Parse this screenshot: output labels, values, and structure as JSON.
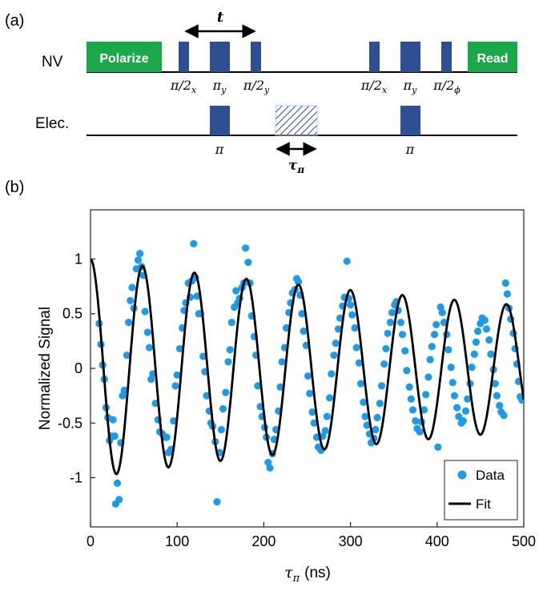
{
  "panel_a": {
    "label": "(a)",
    "nv_row": {
      "label": "NV",
      "polarize_label": "Polarize",
      "read_label": "Read",
      "pulse_labels": [
        "π/2",
        "π",
        "π/2",
        "π/2",
        "π",
        "π/2"
      ],
      "pulse_subscripts": [
        "x",
        "y",
        "y",
        "x",
        "y",
        "ϕ"
      ],
      "t_label": "t"
    },
    "elec_row": {
      "label": "Elec.",
      "pulse_labels": [
        "π",
        "π"
      ],
      "tau_label": "τ",
      "tau_subscript": "π"
    },
    "colors": {
      "green": "#1aa84a",
      "blue": "#2f4f94",
      "hatch": "#2f4f94"
    }
  },
  "panel_b": {
    "label": "(b)"
  },
  "chart_data": {
    "type": "scatter",
    "title": "",
    "xlabel": "τ",
    "xlabel_subscript": "π",
    "xlabel_unit": "(ns)",
    "ylabel": "Normalized Signal",
    "xlim": [
      0,
      500
    ],
    "ylim": [
      -1.45,
      1.45
    ],
    "xticks": [
      0,
      100,
      200,
      300,
      400,
      500
    ],
    "yticks": [
      -1,
      -0.5,
      0,
      0.5,
      1
    ],
    "ytick_labels": [
      "-1",
      "-0.5",
      "0",
      "0.5",
      "1"
    ],
    "legend": {
      "placement": "bottom-right",
      "entries": [
        "Data",
        "Fit"
      ]
    },
    "fit": {
      "name": "Fit",
      "color": "#000000",
      "model": "A*exp(-x/T)*cos(2*pi*x/P)",
      "amplitude": 1.0,
      "decay_ns": 900,
      "period_ns": 60,
      "x_start": 0,
      "x_end": 500,
      "x_step": 1
    },
    "series": [
      {
        "name": "Data",
        "color": "#1e9be6",
        "points": [
          [
            10,
            0.41
          ],
          [
            12,
            0.22
          ],
          [
            14,
            0.03
          ],
          [
            16,
            -0.1
          ],
          [
            18,
            -0.36
          ],
          [
            20,
            -0.45
          ],
          [
            22,
            -0.66
          ],
          [
            24,
            -0.62
          ],
          [
            26,
            -0.47
          ],
          [
            28,
            -0.62
          ],
          [
            29,
            -1.24
          ],
          [
            31,
            -1.05
          ],
          [
            33,
            -1.2
          ],
          [
            35,
            -0.68
          ],
          [
            37,
            -0.25
          ],
          [
            39,
            -0.2
          ],
          [
            42,
            0.12
          ],
          [
            44,
            0.42
          ],
          [
            46,
            0.62
          ],
          [
            48,
            0.74
          ],
          [
            50,
            0.55
          ],
          [
            53,
            0.91
          ],
          [
            55,
            0.99
          ],
          [
            57,
            1.05
          ],
          [
            59,
            0.93
          ],
          [
            61,
            0.85
          ],
          [
            63,
            0.52
          ],
          [
            66,
            0.33
          ],
          [
            68,
            0.19
          ],
          [
            70,
            -0.1
          ],
          [
            72,
            -0.05
          ],
          [
            75,
            -0.32
          ],
          [
            78,
            -0.47
          ],
          [
            80,
            -0.58
          ],
          [
            83,
            -0.6
          ],
          [
            85,
            -0.63
          ],
          [
            88,
            -0.63
          ],
          [
            90,
            -0.77
          ],
          [
            93,
            -0.74
          ],
          [
            96,
            -0.48
          ],
          [
            98,
            -0.16
          ],
          [
            100,
            -0.06
          ],
          [
            103,
            0.18
          ],
          [
            106,
            0.37
          ],
          [
            108,
            0.53
          ],
          [
            110,
            0.6
          ],
          [
            113,
            0.78
          ],
          [
            115,
            0.65
          ],
          [
            117,
            0.8
          ],
          [
            119,
            1.14
          ],
          [
            121,
            0.83
          ],
          [
            123,
            0.66
          ],
          [
            125,
            0.5
          ],
          [
            127,
            0.5
          ],
          [
            130,
            0.11
          ],
          [
            132,
            -0.03
          ],
          [
            134,
            -0.25
          ],
          [
            137,
            -0.39
          ],
          [
            139,
            -0.5
          ],
          [
            141,
            -0.53
          ],
          [
            144,
            -0.67
          ],
          [
            146,
            -1.22
          ],
          [
            149,
            -0.77
          ],
          [
            151,
            -0.56
          ],
          [
            153,
            -0.37
          ],
          [
            156,
            -0.22
          ],
          [
            159,
            0.06
          ],
          [
            161,
            0.17
          ],
          [
            163,
            0.42
          ],
          [
            166,
            0.56
          ],
          [
            168,
            0.71
          ],
          [
            170,
            0.6
          ],
          [
            172,
            0.64
          ],
          [
            175,
            0.74
          ],
          [
            177,
            0.78
          ],
          [
            179,
            1.1
          ],
          [
            182,
            0.97
          ],
          [
            184,
            0.78
          ],
          [
            186,
            0.48
          ],
          [
            189,
            0.29
          ],
          [
            191,
            0.12
          ],
          [
            193,
            -0.16
          ],
          [
            196,
            -0.35
          ],
          [
            198,
            -0.44
          ],
          [
            201,
            -0.54
          ],
          [
            203,
            -0.63
          ],
          [
            205,
            -0.86
          ],
          [
            207,
            -0.91
          ],
          [
            210,
            -0.78
          ],
          [
            212,
            -0.65
          ],
          [
            214,
            -0.56
          ],
          [
            217,
            -0.39
          ],
          [
            219,
            -0.17
          ],
          [
            221,
            0.06
          ],
          [
            224,
            0.19
          ],
          [
            226,
            0.37
          ],
          [
            229,
            0.51
          ],
          [
            231,
            0.6
          ],
          [
            233,
            0.69
          ],
          [
            236,
            0.72
          ],
          [
            238,
            0.82
          ],
          [
            240,
            0.79
          ],
          [
            242,
            0.67
          ],
          [
            244,
            0.5
          ],
          [
            246,
            0.34
          ],
          [
            249,
            0.21
          ],
          [
            251,
            -0.07
          ],
          [
            253,
            -0.23
          ],
          [
            256,
            -0.4
          ],
          [
            258,
            -0.5
          ],
          [
            261,
            -0.63
          ],
          [
            263,
            -0.72
          ],
          [
            266,
            -0.75
          ],
          [
            268,
            -0.62
          ],
          [
            271,
            -0.57
          ],
          [
            273,
            -0.44
          ],
          [
            276,
            -0.27
          ],
          [
            278,
            -0.05
          ],
          [
            281,
            0.12
          ],
          [
            283,
            0.23
          ],
          [
            286,
            0.36
          ],
          [
            288,
            0.46
          ],
          [
            291,
            0.57
          ],
          [
            293,
            0.65
          ],
          [
            296,
            0.98
          ],
          [
            298,
            0.64
          ],
          [
            300,
            0.58
          ],
          [
            302,
            0.49
          ],
          [
            305,
            0.37
          ],
          [
            307,
            0.19
          ],
          [
            310,
            0.05
          ],
          [
            312,
            -0.14
          ],
          [
            315,
            -0.31
          ],
          [
            317,
            -0.44
          ],
          [
            319,
            -0.52
          ],
          [
            322,
            -0.6
          ],
          [
            324,
            -0.68
          ],
          [
            327,
            -0.64
          ],
          [
            329,
            -0.56
          ],
          [
            331,
            -0.45
          ],
          [
            334,
            -0.32
          ],
          [
            336,
            -0.16
          ],
          [
            339,
            0.04
          ],
          [
            341,
            0.18
          ],
          [
            343,
            0.32
          ],
          [
            346,
            0.42
          ],
          [
            348,
            0.51
          ],
          [
            351,
            0.58
          ],
          [
            353,
            0.61
          ],
          [
            355,
            0.53
          ],
          [
            358,
            0.42
          ],
          [
            360,
            0.31
          ],
          [
            363,
            0.16
          ],
          [
            365,
            -0.02
          ],
          [
            368,
            -0.17
          ],
          [
            370,
            -0.28
          ],
          [
            372,
            -0.38
          ],
          [
            375,
            -0.48
          ],
          [
            377,
            -0.55
          ],
          [
            380,
            -0.58
          ],
          [
            382,
            -0.49
          ],
          [
            385,
            -0.38
          ],
          [
            387,
            -0.24
          ],
          [
            390,
            -0.08
          ],
          [
            392,
            0.08
          ],
          [
            394,
            0.2
          ],
          [
            397,
            0.31
          ],
          [
            399,
            0.4
          ],
          [
            401,
            -0.72
          ],
          [
            404,
            0.56
          ],
          [
            406,
            0.51
          ],
          [
            408,
            0.42
          ],
          [
            411,
            0.31
          ],
          [
            413,
            0.17
          ],
          [
            416,
            0.01
          ],
          [
            418,
            -0.13
          ],
          [
            420,
            -0.25
          ],
          [
            423,
            -0.36
          ],
          [
            425,
            -0.44
          ],
          [
            428,
            -0.5
          ],
          [
            430,
            -0.48
          ],
          [
            433,
            -0.39
          ],
          [
            435,
            -0.28
          ],
          [
            438,
            -0.14
          ],
          [
            440,
            0.01
          ],
          [
            443,
            0.13
          ],
          [
            445,
            0.24
          ],
          [
            447,
            0.34
          ],
          [
            450,
            0.41
          ],
          [
            452,
            0.46
          ],
          [
            455,
            0.44
          ],
          [
            457,
            0.36
          ],
          [
            460,
            0.26
          ],
          [
            462,
            0.13
          ],
          [
            465,
            -0.01
          ],
          [
            467,
            -0.14
          ],
          [
            469,
            -0.25
          ],
          [
            472,
            -0.34
          ],
          [
            474,
            -0.4
          ],
          [
            477,
            -0.43
          ],
          [
            479,
            0.78
          ],
          [
            481,
            0.68
          ],
          [
            483,
            0.55
          ],
          [
            485,
            0.45
          ],
          [
            488,
            0.32
          ],
          [
            490,
            0.18
          ],
          [
            492,
            0.04
          ],
          [
            494,
            -0.12
          ],
          [
            496,
            -0.26
          ],
          [
            498,
            -0.29
          ]
        ]
      }
    ]
  }
}
